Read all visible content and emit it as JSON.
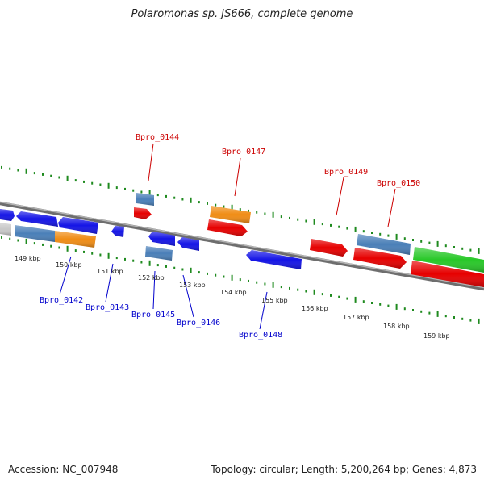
{
  "title": "Polaromonas sp. JS666, complete genome",
  "footer": {
    "accession": "Accession: NC_007948",
    "topology": "Topology: circular; Length: 5,200,264 bp; Genes: 4,873"
  },
  "colors": {
    "backbone": "#8a8a8a",
    "tick": "#1f8a1f",
    "forward_label": "#cc0000",
    "reverse_label": "#0000cc",
    "blue_gene": "#1414e6",
    "steel_gene": "#4a7fb8",
    "orange_gene": "#f08c14",
    "red_gene": "#e60000",
    "green_gene": "#28c828",
    "gray_gene": "#c8c8c8"
  },
  "scale_labels": [
    "149 kbp",
    "150 kbp",
    "151 kbp",
    "152 kbp",
    "153 kbp",
    "154 kbp",
    "155 kbp",
    "156 kbp",
    "157 kbp",
    "158 kbp",
    "159 kbp"
  ],
  "labels_top": [
    "Bpro_0144",
    "Bpro_0147",
    "Bpro_0149",
    "Bpro_0150"
  ],
  "labels_bottom": [
    "Bpro_0142",
    "Bpro_0143",
    "Bpro_0145",
    "Bpro_0146",
    "Bpro_0148"
  ]
}
